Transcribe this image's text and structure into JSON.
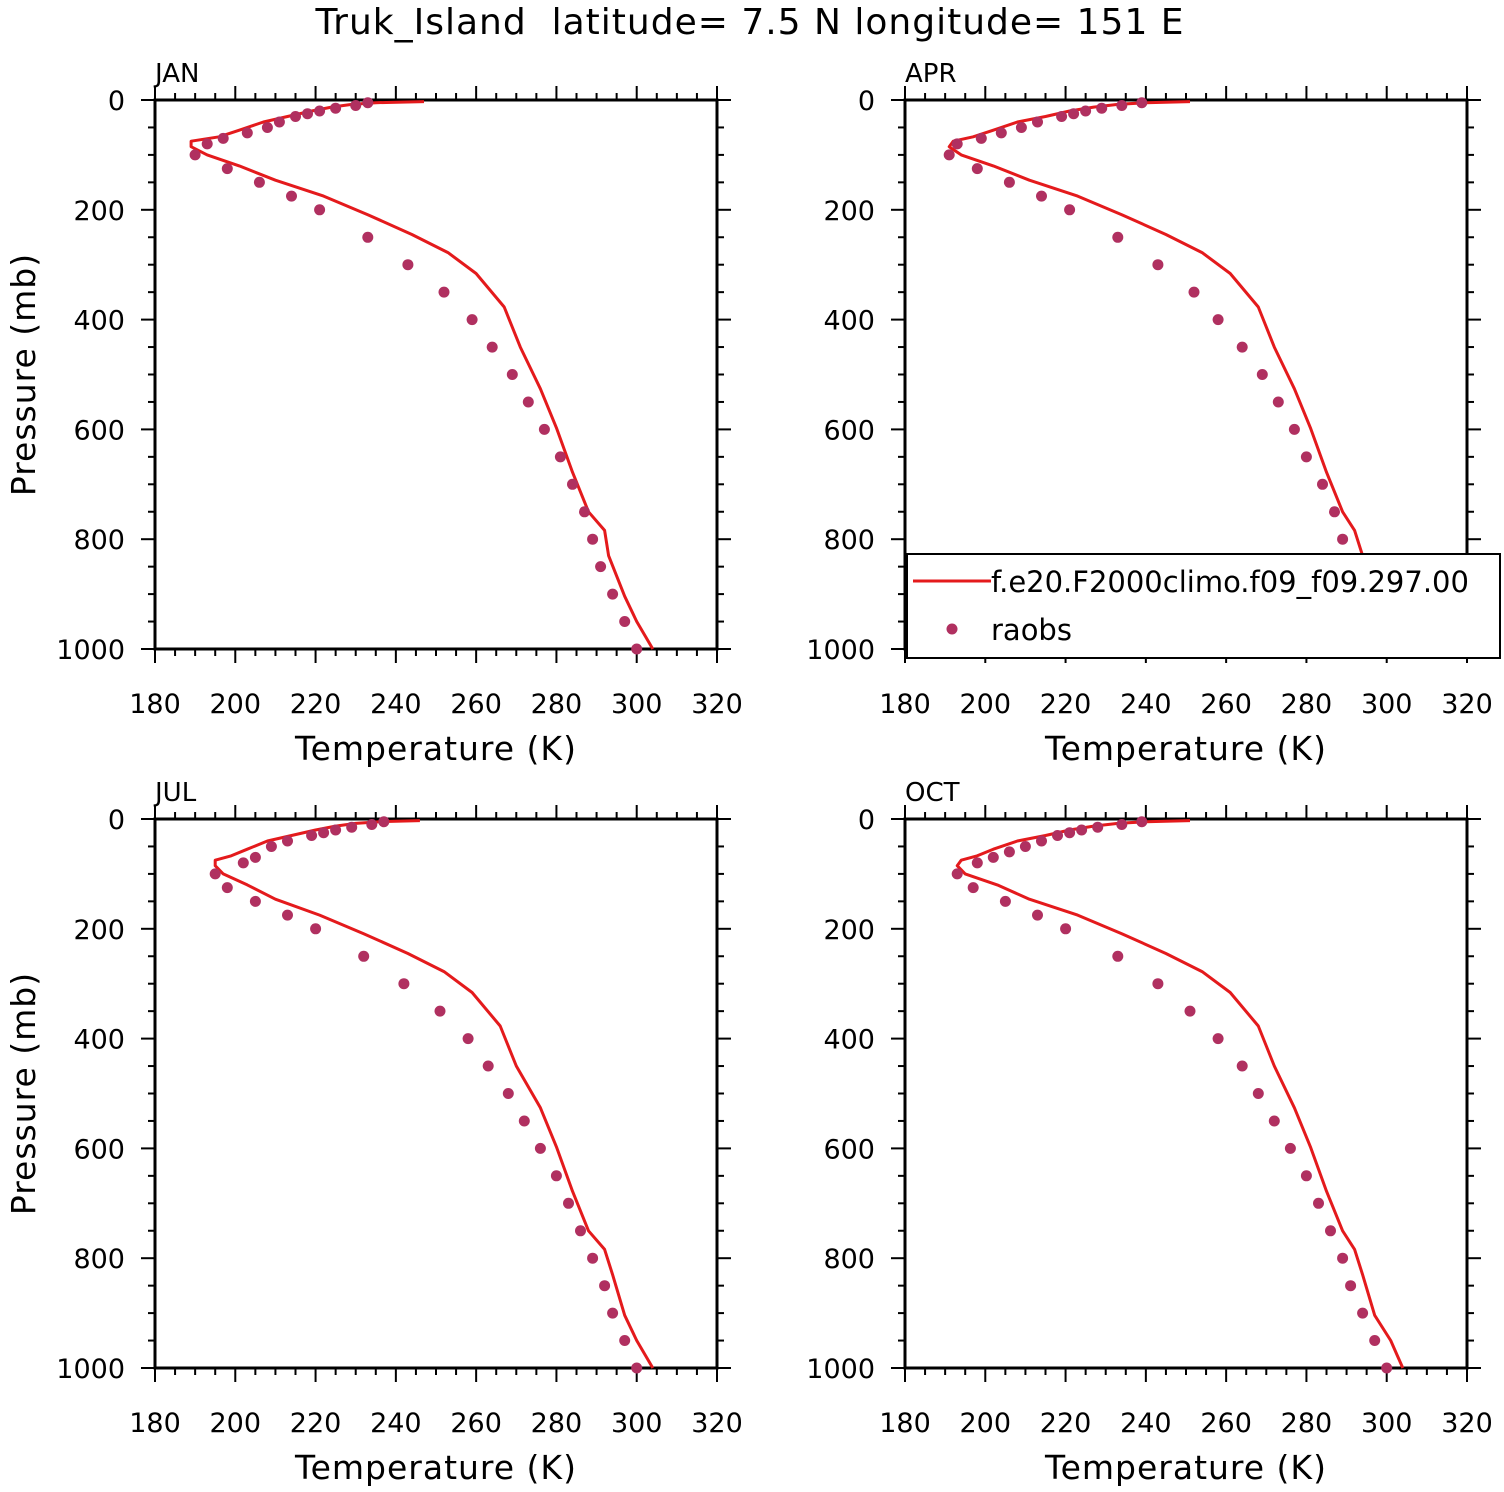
{
  "figure_title": "Truk_Island  latitude= 7.5 N longitude= 151 E",
  "colors": {
    "model_line": "#e41a1c",
    "obs_marker": "#b03060",
    "axes": "#000000"
  },
  "legend": {
    "panel": "APR",
    "placement": "lower-right",
    "entries": [
      {
        "label": "f.e20.F2000climo.f09_f09.297.00",
        "symbol": "line"
      },
      {
        "label": "raobs",
        "symbol": "dot"
      }
    ]
  },
  "chart_data": [
    {
      "type": "line",
      "panel_label": "JAN",
      "xlabel": "Temperature (K)",
      "ylabel": "Pressure (mb)",
      "xlim": [
        180,
        320
      ],
      "ylim": [
        1000,
        0
      ],
      "x_ticks": [
        180,
        200,
        220,
        240,
        260,
        280,
        300,
        320
      ],
      "y_ticks": [
        0,
        200,
        400,
        600,
        800,
        1000
      ],
      "series": [
        {
          "name": "f.e20.F2000climo.f09_f09.297.00",
          "kind": "line",
          "points": [
            [
              247,
              3
            ],
            [
              235,
              5
            ],
            [
              229,
              8
            ],
            [
              224,
              13
            ],
            [
              219,
              20
            ],
            [
              213,
              30
            ],
            [
              207,
              40
            ],
            [
              201,
              55
            ],
            [
              196,
              67
            ],
            [
              189,
              75
            ],
            [
              189,
              85
            ],
            [
              193,
              100
            ],
            [
              201,
              120
            ],
            [
              210,
              146
            ],
            [
              222,
              175
            ],
            [
              233,
              209
            ],
            [
              244,
              245
            ],
            [
              253,
              278
            ],
            [
              260,
              316
            ],
            [
              267,
              377
            ],
            [
              271,
              450
            ],
            [
              276,
              526
            ],
            [
              280,
              597
            ],
            [
              284,
              678
            ],
            [
              288,
              750
            ],
            [
              292,
              784
            ],
            [
              293,
              830
            ],
            [
              297,
              904
            ],
            [
              300,
              950
            ],
            [
              304,
              1000
            ]
          ]
        },
        {
          "name": "raobs",
          "kind": "scatter",
          "points": [
            [
              233,
              5
            ],
            [
              230,
              10
            ],
            [
              225,
              15
            ],
            [
              221,
              20
            ],
            [
              218,
              25
            ],
            [
              215,
              30
            ],
            [
              211,
              40
            ],
            [
              208,
              50
            ],
            [
              203,
              60
            ],
            [
              197,
              70
            ],
            [
              193,
              80
            ],
            [
              190,
              100
            ],
            [
              198,
              125
            ],
            [
              206,
              150
            ],
            [
              214,
              175
            ],
            [
              221,
              200
            ],
            [
              233,
              250
            ],
            [
              243,
              300
            ],
            [
              252,
              350
            ],
            [
              259,
              400
            ],
            [
              264,
              450
            ],
            [
              269,
              500
            ],
            [
              273,
              550
            ],
            [
              277,
              600
            ],
            [
              281,
              650
            ],
            [
              284,
              700
            ],
            [
              287,
              750
            ],
            [
              289,
              800
            ],
            [
              291,
              850
            ],
            [
              294,
              900
            ],
            [
              297,
              950
            ],
            [
              300,
              1000
            ]
          ]
        }
      ]
    },
    {
      "type": "line",
      "panel_label": "APR",
      "xlabel": "Temperature (K)",
      "ylabel": "",
      "xlim": [
        180,
        320
      ],
      "ylim": [
        1000,
        0
      ],
      "x_ticks": [
        180,
        200,
        220,
        240,
        260,
        280,
        300,
        320
      ],
      "y_ticks": [
        0,
        200,
        400,
        600,
        800,
        1000
      ],
      "series": [
        {
          "name": "f.e20.F2000climo.f09_f09.297.00",
          "kind": "line",
          "points": [
            [
              251,
              3
            ],
            [
              240,
              5
            ],
            [
              233,
              8
            ],
            [
              227,
              13
            ],
            [
              221,
              20
            ],
            [
              215,
              30
            ],
            [
              208,
              40
            ],
            [
              202,
              55
            ],
            [
              197,
              67
            ],
            [
              192,
              75
            ],
            [
              191,
              85
            ],
            [
              194,
              100
            ],
            [
              202,
              120
            ],
            [
              211,
              146
            ],
            [
              223,
              175
            ],
            [
              234,
              209
            ],
            [
              245,
              245
            ],
            [
              254,
              278
            ],
            [
              261,
              316
            ],
            [
              268,
              377
            ],
            [
              272,
              450
            ],
            [
              277,
              526
            ],
            [
              281,
              597
            ],
            [
              285,
              678
            ],
            [
              289,
              750
            ],
            [
              292,
              784
            ],
            [
              294,
              830
            ],
            [
              297,
              904
            ],
            [
              301,
              950
            ],
            [
              304,
              1000
            ]
          ]
        },
        {
          "name": "raobs",
          "kind": "scatter",
          "points": [
            [
              239,
              5
            ],
            [
              234,
              10
            ],
            [
              229,
              15
            ],
            [
              225,
              20
            ],
            [
              222,
              25
            ],
            [
              219,
              30
            ],
            [
              213,
              40
            ],
            [
              209,
              50
            ],
            [
              204,
              60
            ],
            [
              199,
              70
            ],
            [
              193,
              80
            ],
            [
              191,
              100
            ],
            [
              198,
              125
            ],
            [
              206,
              150
            ],
            [
              214,
              175
            ],
            [
              221,
              200
            ],
            [
              233,
              250
            ],
            [
              243,
              300
            ],
            [
              252,
              350
            ],
            [
              258,
              400
            ],
            [
              264,
              450
            ],
            [
              269,
              500
            ],
            [
              273,
              550
            ],
            [
              277,
              600
            ],
            [
              280,
              650
            ],
            [
              284,
              700
            ],
            [
              287,
              750
            ],
            [
              289,
              800
            ],
            [
              292,
              850
            ],
            [
              294,
              900
            ],
            [
              297,
              950
            ],
            [
              300,
              1000
            ]
          ]
        }
      ]
    },
    {
      "type": "line",
      "panel_label": "JUL",
      "xlabel": "Temperature (K)",
      "ylabel": "Pressure (mb)",
      "xlim": [
        180,
        320
      ],
      "ylim": [
        1000,
        0
      ],
      "x_ticks": [
        180,
        200,
        220,
        240,
        260,
        280,
        300,
        320
      ],
      "y_ticks": [
        0,
        200,
        400,
        600,
        800,
        1000
      ],
      "series": [
        {
          "name": "f.e20.F2000climo.f09_f09.297.00",
          "kind": "line",
          "points": [
            [
              246,
              3
            ],
            [
              236,
              5
            ],
            [
              230,
              8
            ],
            [
              225,
              13
            ],
            [
              220,
              20
            ],
            [
              214,
              30
            ],
            [
              208,
              40
            ],
            [
              203,
              55
            ],
            [
              199,
              67
            ],
            [
              195,
              75
            ],
            [
              195,
              85
            ],
            [
              197,
              100
            ],
            [
              203,
              120
            ],
            [
              210,
              146
            ],
            [
              221,
              175
            ],
            [
              232,
              209
            ],
            [
              243,
              245
            ],
            [
              252,
              278
            ],
            [
              259,
              316
            ],
            [
              266,
              377
            ],
            [
              270,
              450
            ],
            [
              276,
              526
            ],
            [
              280,
              597
            ],
            [
              284,
              678
            ],
            [
              288,
              750
            ],
            [
              292,
              784
            ],
            [
              294,
              830
            ],
            [
              297,
              904
            ],
            [
              300,
              950
            ],
            [
              304,
              1000
            ]
          ]
        },
        {
          "name": "raobs",
          "kind": "scatter",
          "points": [
            [
              237,
              5
            ],
            [
              234,
              10
            ],
            [
              229,
              15
            ],
            [
              225,
              20
            ],
            [
              222,
              25
            ],
            [
              219,
              30
            ],
            [
              213,
              40
            ],
            [
              209,
              50
            ],
            [
              205,
              70
            ],
            [
              202,
              80
            ],
            [
              195,
              100
            ],
            [
              198,
              125
            ],
            [
              205,
              150
            ],
            [
              213,
              175
            ],
            [
              220,
              200
            ],
            [
              232,
              250
            ],
            [
              242,
              300
            ],
            [
              251,
              350
            ],
            [
              258,
              400
            ],
            [
              263,
              450
            ],
            [
              268,
              500
            ],
            [
              272,
              550
            ],
            [
              276,
              600
            ],
            [
              280,
              650
            ],
            [
              283,
              700
            ],
            [
              286,
              750
            ],
            [
              289,
              800
            ],
            [
              292,
              850
            ],
            [
              294,
              900
            ],
            [
              297,
              950
            ],
            [
              300,
              1000
            ]
          ]
        }
      ]
    },
    {
      "type": "line",
      "panel_label": "OCT",
      "xlabel": "Temperature (K)",
      "ylabel": "",
      "xlim": [
        180,
        320
      ],
      "ylim": [
        1000,
        0
      ],
      "x_ticks": [
        180,
        200,
        220,
        240,
        260,
        280,
        300,
        320
      ],
      "y_ticks": [
        0,
        200,
        400,
        600,
        800,
        1000
      ],
      "series": [
        {
          "name": "f.e20.F2000climo.f09_f09.297.00",
          "kind": "line",
          "points": [
            [
              251,
              3
            ],
            [
              240,
              5
            ],
            [
              233,
              8
            ],
            [
              227,
              13
            ],
            [
              221,
              20
            ],
            [
              215,
              30
            ],
            [
              208,
              40
            ],
            [
              202,
              55
            ],
            [
              198,
              67
            ],
            [
              194,
              75
            ],
            [
              193,
              85
            ],
            [
              195,
              100
            ],
            [
              203,
              120
            ],
            [
              211,
              146
            ],
            [
              223,
              175
            ],
            [
              234,
              209
            ],
            [
              245,
              245
            ],
            [
              254,
              278
            ],
            [
              261,
              316
            ],
            [
              268,
              377
            ],
            [
              272,
              450
            ],
            [
              277,
              526
            ],
            [
              281,
              597
            ],
            [
              285,
              678
            ],
            [
              289,
              750
            ],
            [
              292,
              784
            ],
            [
              294,
              830
            ],
            [
              297,
              904
            ],
            [
              301,
              950
            ],
            [
              304,
              1000
            ]
          ]
        },
        {
          "name": "raobs",
          "kind": "scatter",
          "points": [
            [
              239,
              5
            ],
            [
              234,
              10
            ],
            [
              228,
              15
            ],
            [
              224,
              20
            ],
            [
              221,
              25
            ],
            [
              218,
              30
            ],
            [
              214,
              40
            ],
            [
              210,
              50
            ],
            [
              206,
              60
            ],
            [
              202,
              70
            ],
            [
              198,
              80
            ],
            [
              193,
              100
            ],
            [
              197,
              125
            ],
            [
              205,
              150
            ],
            [
              213,
              175
            ],
            [
              220,
              200
            ],
            [
              233,
              250
            ],
            [
              243,
              300
            ],
            [
              251,
              350
            ],
            [
              258,
              400
            ],
            [
              264,
              450
            ],
            [
              268,
              500
            ],
            [
              272,
              550
            ],
            [
              276,
              600
            ],
            [
              280,
              650
            ],
            [
              283,
              700
            ],
            [
              286,
              750
            ],
            [
              289,
              800
            ],
            [
              291,
              850
            ],
            [
              294,
              900
            ],
            [
              297,
              950
            ],
            [
              300,
              1000
            ]
          ]
        }
      ]
    }
  ]
}
